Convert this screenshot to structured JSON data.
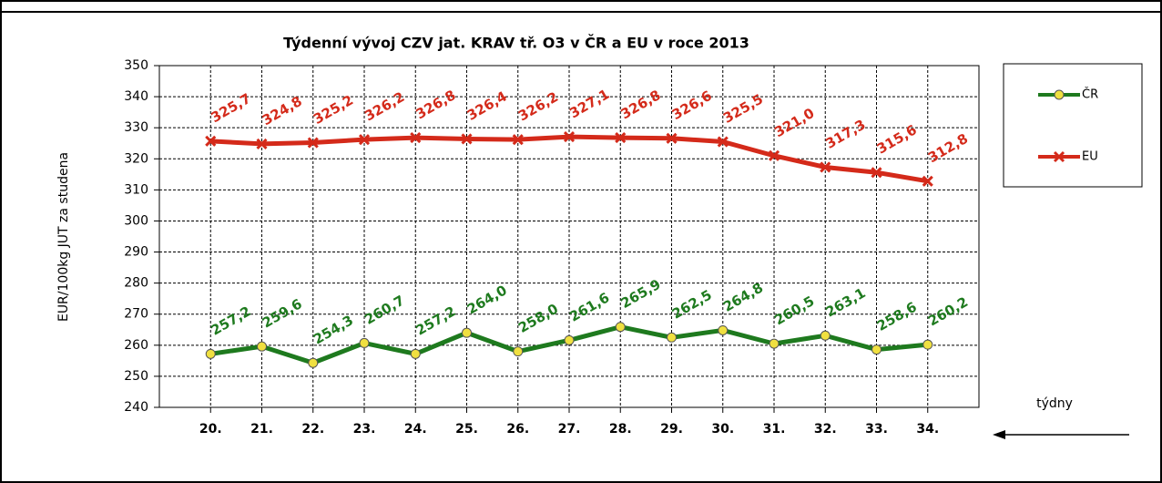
{
  "chart_data": {
    "type": "line",
    "title": "Týdenní vývoj CZV jat. KRAV tř. O3  v ČR a EU v roce 2013",
    "y_label": "EUR/100kg  JUT za studena",
    "x_label": "týdny",
    "categories": [
      "20.",
      "21.",
      "22.",
      "23.",
      "24.",
      "25.",
      "26.",
      "27.",
      "28.",
      "29.",
      "30.",
      "31.",
      "32.",
      "33.",
      "34."
    ],
    "series": [
      {
        "name": "ČR",
        "color": "#1e7a1e",
        "marker": "circle",
        "values": [
          257.2,
          259.6,
          254.3,
          260.7,
          257.2,
          264.0,
          258.0,
          261.6,
          265.9,
          262.5,
          264.8,
          260.5,
          263.1,
          258.6,
          260.2
        ],
        "value_labels": [
          "257,2",
          "259,6",
          "254,3",
          "260,7",
          "257,2",
          "264,0",
          "258,0",
          "261,6",
          "265,9",
          "262,5",
          "264,8",
          "260,5",
          "263,1",
          "258,6",
          "260,2"
        ]
      },
      {
        "name": "EU",
        "color": "#d42a1a",
        "marker": "x",
        "values": [
          325.7,
          324.8,
          325.2,
          326.2,
          326.8,
          326.4,
          326.2,
          327.1,
          326.8,
          326.6,
          325.5,
          321.0,
          317.3,
          315.6,
          312.8
        ],
        "value_labels": [
          "325,7",
          "324,8",
          "325,2",
          "326,2",
          "326,8",
          "326,4",
          "326,2",
          "327,1",
          "326,8",
          "326,6",
          "325,5",
          "321,0",
          "317,3",
          "315,6",
          "312,8"
        ]
      }
    ],
    "ylim": [
      240,
      350
    ],
    "yticks": [
      240,
      250,
      260,
      270,
      280,
      290,
      300,
      310,
      320,
      330,
      340,
      350
    ],
    "grid": true,
    "legend": "right"
  }
}
